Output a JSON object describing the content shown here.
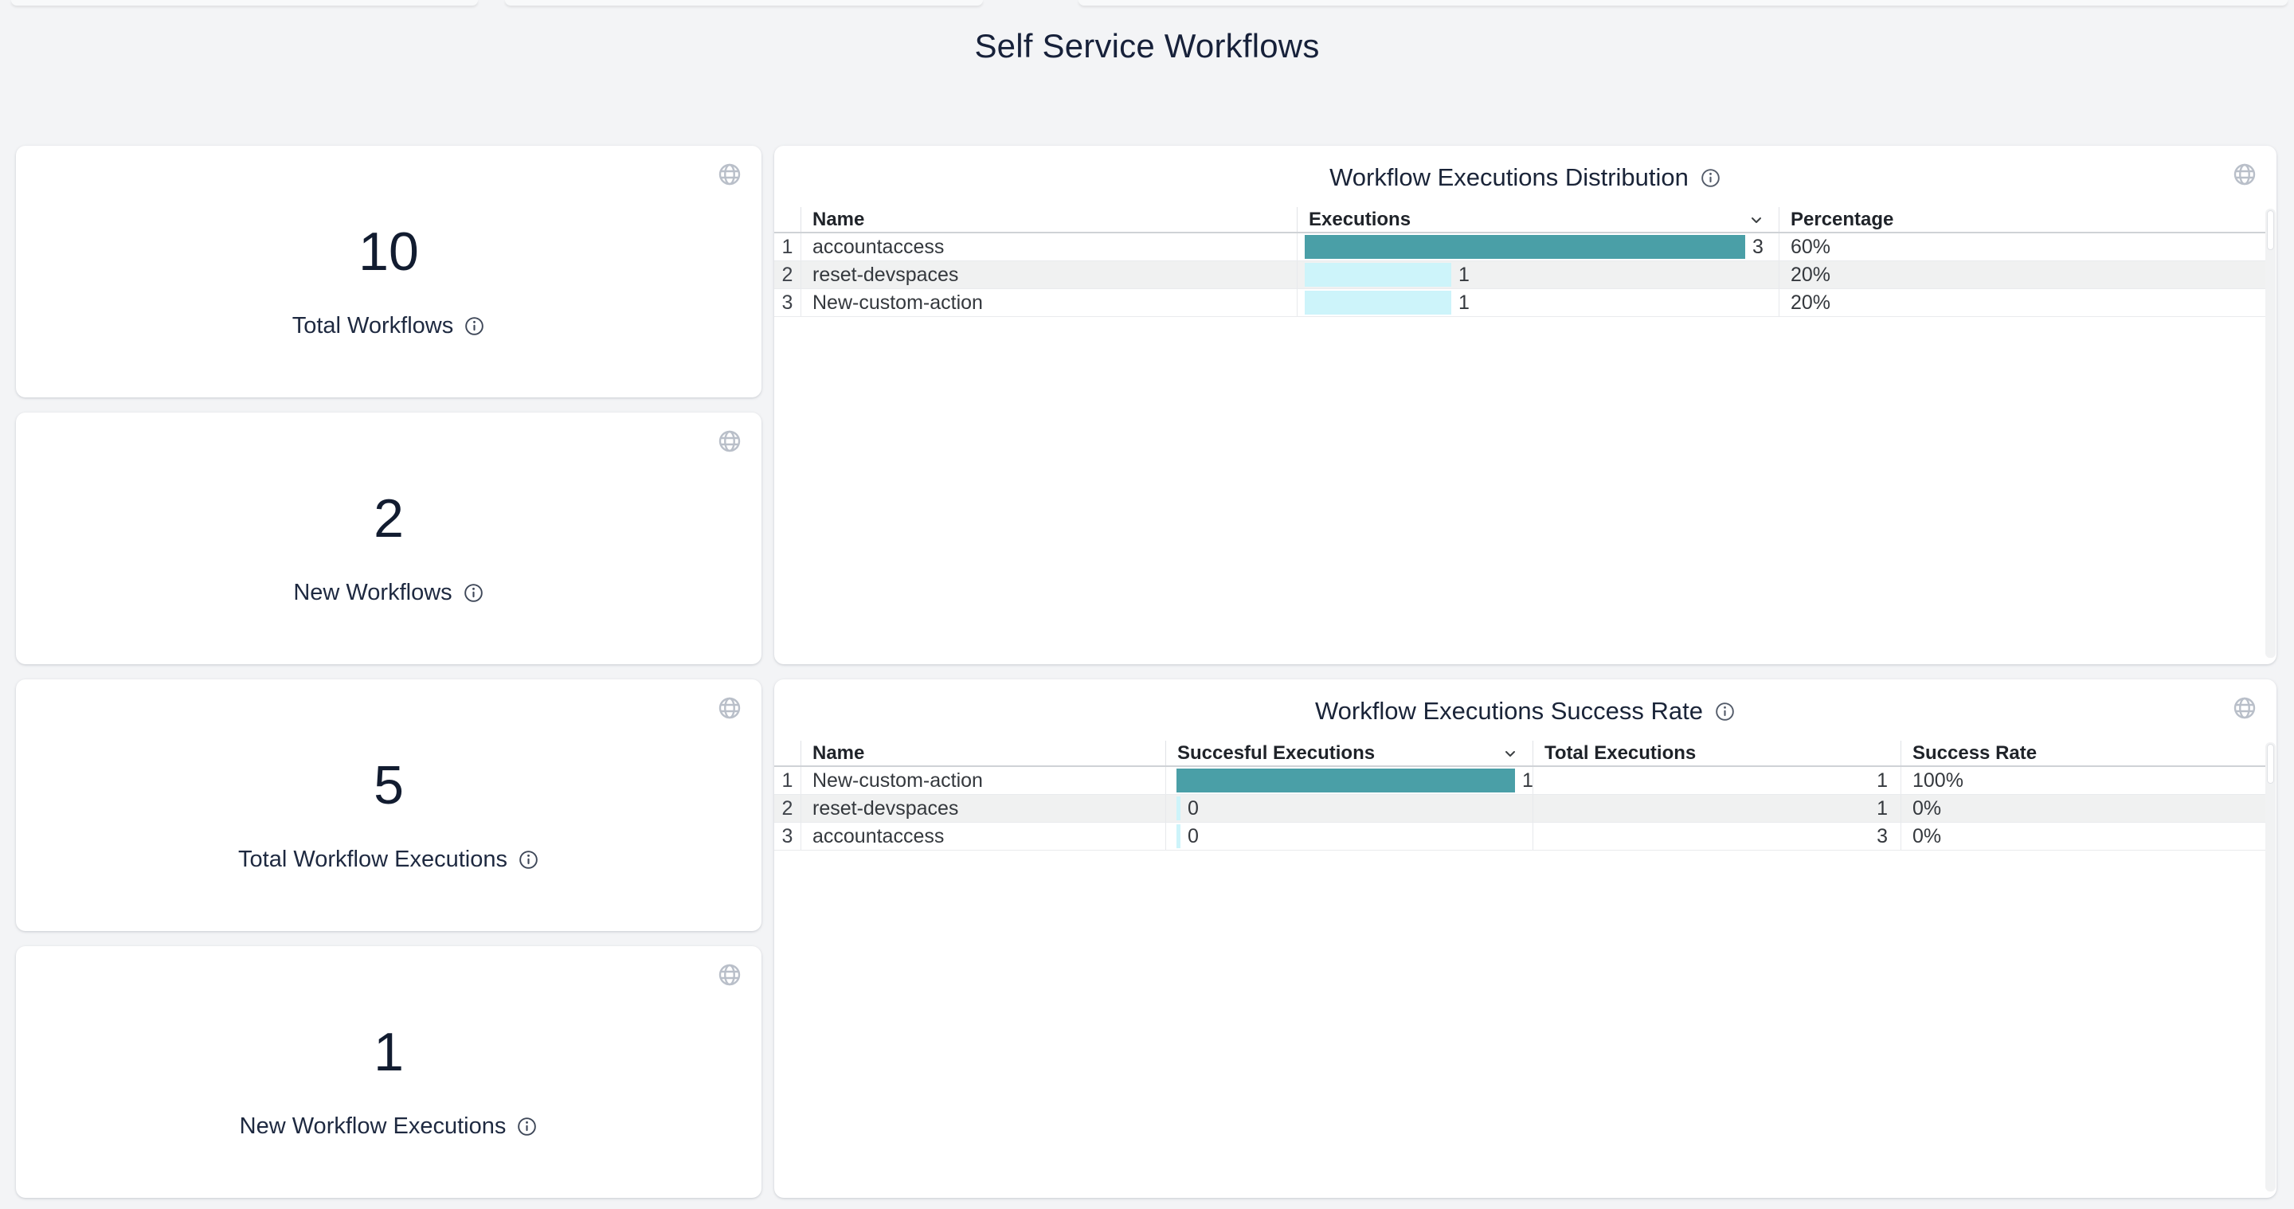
{
  "page": {
    "title": "Self Service Workflows"
  },
  "colors": {
    "page_bg": "#f3f4f6",
    "bar_teal": "#4A9FA7",
    "bar_light_cyan": "#CDF4FA",
    "zebra_row": "#F0F1F1",
    "title_navy": "#17213A"
  },
  "icons": {
    "panel_action": "globe-icon",
    "label_info": "info-icon",
    "sort": "chevron-down-icon"
  },
  "stat_cards": [
    {
      "value": "10",
      "label": "Total Workflows"
    },
    {
      "value": "2",
      "label": "New Workflows"
    },
    {
      "value": "5",
      "label": "Total Workflow Executions"
    },
    {
      "value": "1",
      "label": "New Workflow Executions"
    }
  ],
  "distribution_table": {
    "title": "Workflow Executions Distribution",
    "columns": {
      "name": "Name",
      "executions": "Executions",
      "percentage": "Percentage"
    },
    "max_value": 3,
    "rows": [
      {
        "index": "1",
        "name": "accountaccess",
        "executions": 3,
        "percentage": "60%"
      },
      {
        "index": "2",
        "name": "reset-devspaces",
        "executions": 1,
        "percentage": "20%"
      },
      {
        "index": "3",
        "name": "New-custom-action",
        "executions": 1,
        "percentage": "20%"
      }
    ]
  },
  "success_table": {
    "title": "Workflow Executions Success Rate",
    "columns": {
      "name": "Name",
      "successful": "Succesful Executions",
      "total": "Total Executions",
      "rate": "Success Rate"
    },
    "max_value": 1,
    "rows": [
      {
        "index": "1",
        "name": "New-custom-action",
        "successful": 1,
        "total": "1",
        "rate": "100%"
      },
      {
        "index": "2",
        "name": "reset-devspaces",
        "successful": 0,
        "total": "1",
        "rate": "0%"
      },
      {
        "index": "3",
        "name": "accountaccess",
        "successful": 0,
        "total": "3",
        "rate": "0%"
      }
    ]
  },
  "chart_data": [
    {
      "type": "bar",
      "orientation": "horizontal",
      "title": "Workflow Executions Distribution",
      "categories": [
        "accountaccess",
        "reset-devspaces",
        "New-custom-action"
      ],
      "values": [
        3,
        1,
        1
      ],
      "percentages": [
        "60%",
        "20%",
        "20%"
      ],
      "xlabel": "Executions",
      "xlim": [
        0,
        3
      ]
    },
    {
      "type": "bar",
      "orientation": "horizontal",
      "title": "Workflow Executions Success Rate",
      "categories": [
        "New-custom-action",
        "reset-devspaces",
        "accountaccess"
      ],
      "series": [
        {
          "name": "Succesful Executions",
          "values": [
            1,
            0,
            0
          ]
        },
        {
          "name": "Total Executions",
          "values": [
            1,
            1,
            3
          ]
        }
      ],
      "success_rates": [
        "100%",
        "0%",
        "0%"
      ],
      "xlim": [
        0,
        1
      ]
    }
  ]
}
